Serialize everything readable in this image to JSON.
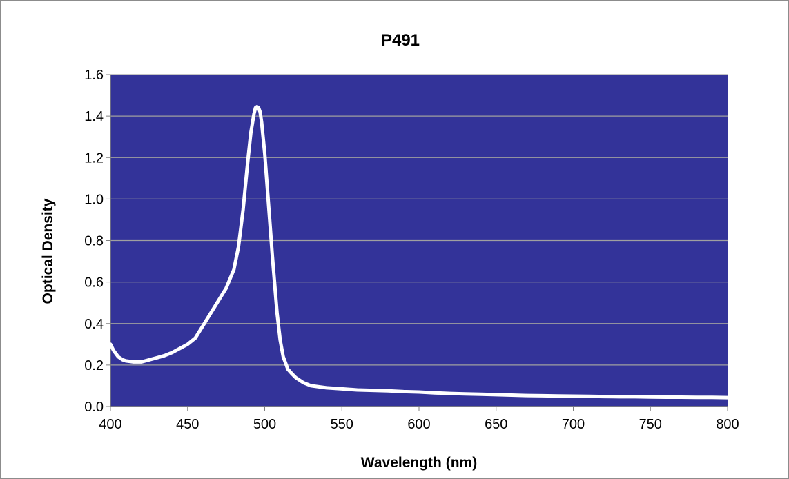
{
  "chart_data": {
    "type": "line",
    "title": "P491",
    "xlabel": "Wavelength (nm)",
    "ylabel": "Optical Density",
    "xlim": [
      400,
      800
    ],
    "ylim": [
      0,
      1.6
    ],
    "xticks": [
      "400",
      "450",
      "500",
      "550",
      "600",
      "650",
      "700",
      "750",
      "800"
    ],
    "yticks": [
      "0.0",
      "0.2",
      "0.4",
      "0.6",
      "0.8",
      "1.0",
      "1.2",
      "1.4",
      "1.6"
    ],
    "grid": "horizontal",
    "legend": "none",
    "colors": {
      "plot_background": "#333399",
      "line": "#ffffff",
      "gridline": "#a0a0a0"
    },
    "series": [
      {
        "x": [
          400,
          402,
          405,
          408,
          410,
          415,
          420,
          425,
          430,
          435,
          440,
          445,
          450,
          455,
          460,
          465,
          470,
          475,
          480,
          483,
          486,
          489,
          491,
          493,
          494,
          495,
          496,
          497,
          498,
          500,
          502,
          505,
          508,
          510,
          512,
          515,
          518,
          520,
          525,
          530,
          535,
          540,
          550,
          560,
          570,
          580,
          590,
          600,
          610,
          620,
          630,
          640,
          650,
          660,
          670,
          680,
          690,
          700,
          710,
          720,
          730,
          740,
          750,
          760,
          770,
          780,
          790,
          800
        ],
        "y": [
          0.3,
          0.27,
          0.24,
          0.225,
          0.22,
          0.215,
          0.215,
          0.225,
          0.235,
          0.245,
          0.26,
          0.28,
          0.3,
          0.33,
          0.39,
          0.45,
          0.51,
          0.57,
          0.66,
          0.77,
          0.95,
          1.18,
          1.32,
          1.41,
          1.44,
          1.445,
          1.44,
          1.42,
          1.37,
          1.22,
          1.02,
          0.72,
          0.45,
          0.32,
          0.24,
          0.18,
          0.155,
          0.14,
          0.115,
          0.1,
          0.095,
          0.09,
          0.085,
          0.08,
          0.078,
          0.076,
          0.072,
          0.07,
          0.066,
          0.063,
          0.061,
          0.059,
          0.057,
          0.055,
          0.053,
          0.052,
          0.051,
          0.05,
          0.049,
          0.048,
          0.047,
          0.047,
          0.046,
          0.045,
          0.045,
          0.044,
          0.044,
          0.043
        ]
      }
    ]
  }
}
